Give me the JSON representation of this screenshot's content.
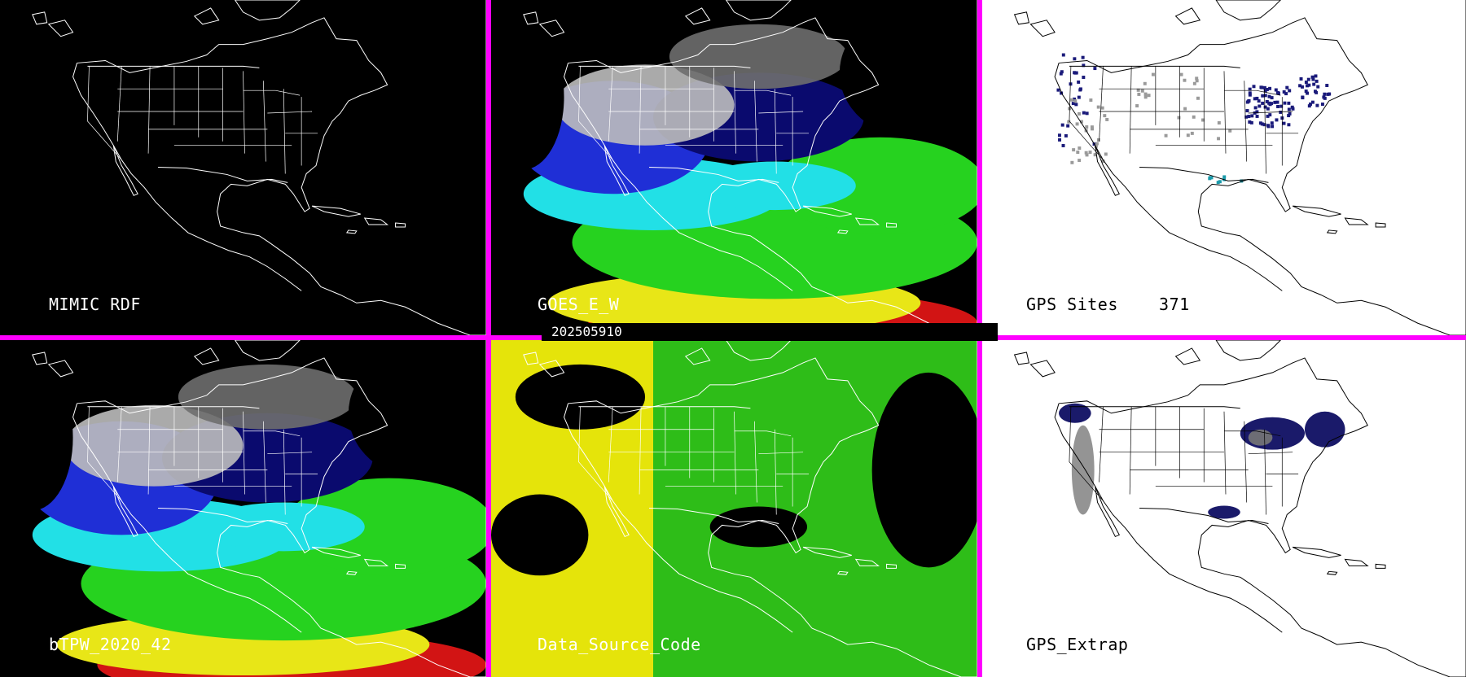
{
  "panels": [
    {
      "id": "p1",
      "label": "MIMIC RDF",
      "background": "#000000",
      "line_color": "#ffffff",
      "style": "outline"
    },
    {
      "id": "p2",
      "label": "GOES_E_W",
      "background": "#000000",
      "line_color": "#ffffff",
      "style": "tpw"
    },
    {
      "id": "p3",
      "label": "GPS Sites    371",
      "background": "#ffffff",
      "line_color": "#000000",
      "style": "sites"
    },
    {
      "id": "p4",
      "label": "bTPW_2020_42",
      "background": "#000000",
      "line_color": "#ffffff",
      "style": "tpw"
    },
    {
      "id": "p5",
      "label": "Data_Source_Code",
      "background": "#000000",
      "line_color": "#ffffff",
      "style": "source"
    },
    {
      "id": "p6",
      "label": "GPS_Extrap",
      "background": "#ffffff",
      "line_color": "#000000",
      "style": "extrap"
    }
  ],
  "timestamp": "202505910",
  "colors": {
    "divider": "#ff00ff",
    "tpw_low_gray": "#bcbcbc",
    "tpw_navy": "#0a0a6e",
    "tpw_blue": "#1f2fd6",
    "tpw_cyan": "#22e0e6",
    "tpw_green": "#26d21f",
    "tpw_olive": "#a6a12c",
    "tpw_yellow": "#e8e617",
    "tpw_red": "#d21414",
    "source_yellow": "#e5e40a",
    "source_green": "#2ebd18"
  }
}
